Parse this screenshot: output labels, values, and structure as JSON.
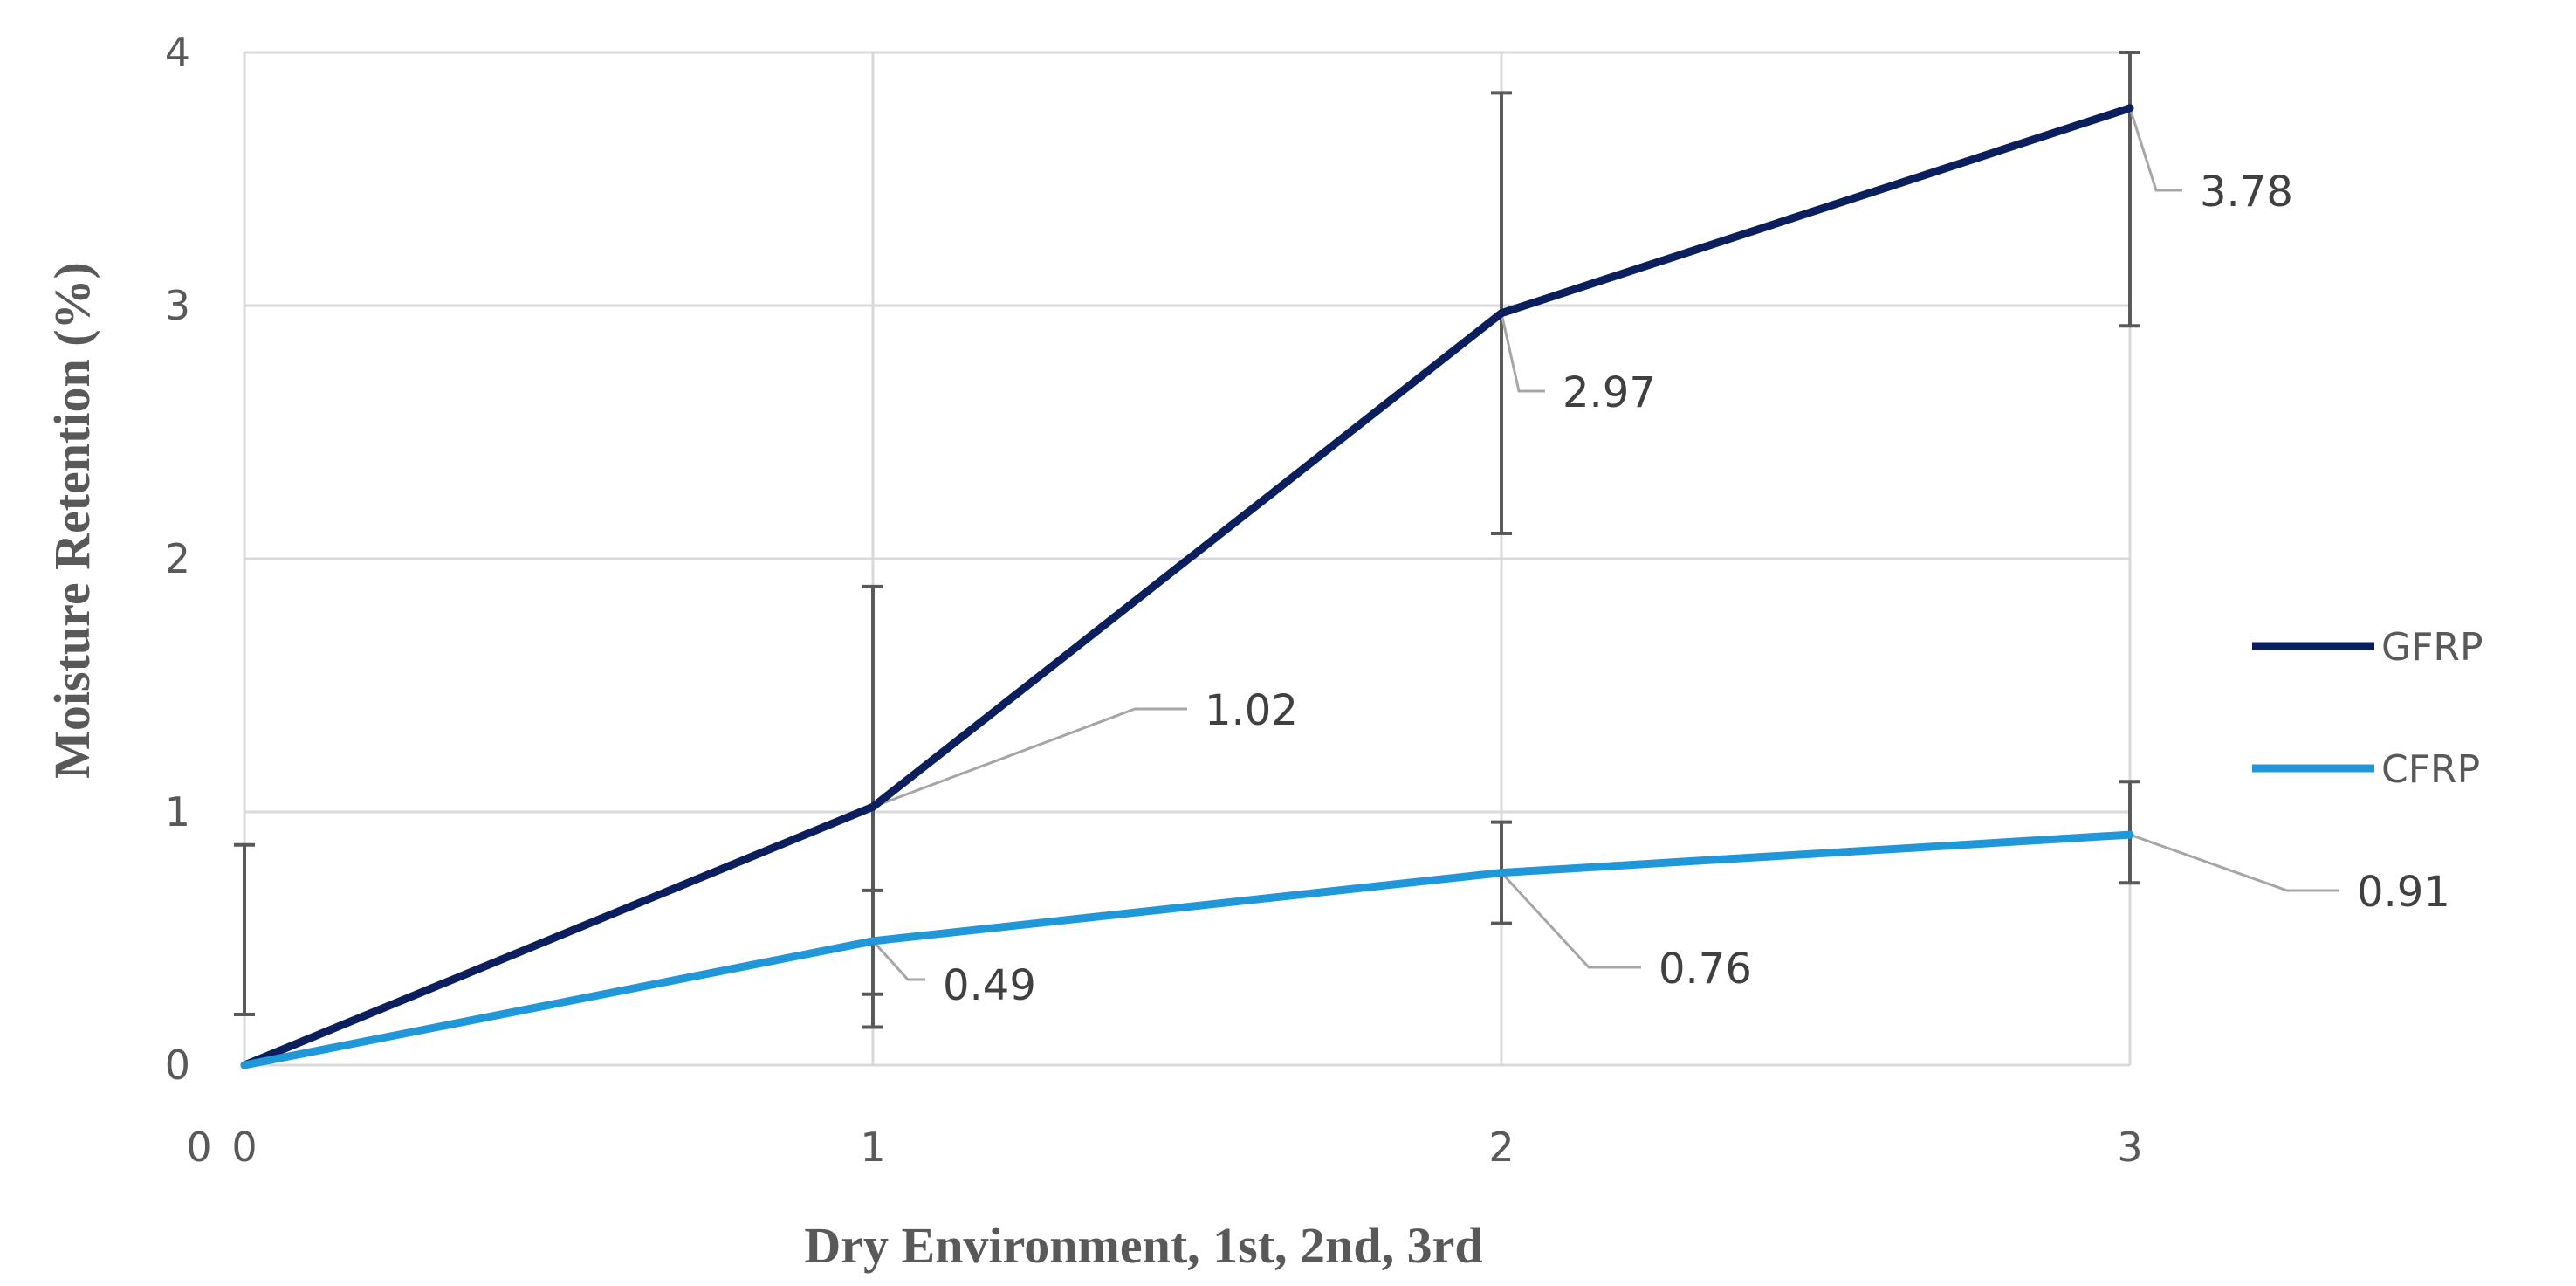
{
  "chart_data": {
    "type": "line",
    "xlabel": "Dry Environment, 1st, 2nd, 3rd",
    "ylabel": "Moisture Retention (%)",
    "x": [
      0,
      1,
      2,
      3
    ],
    "xlim": [
      0,
      3
    ],
    "ylim": [
      0,
      4
    ],
    "x_ticks": [
      "0",
      "1",
      "2",
      "3"
    ],
    "y_ticks": [
      "0",
      "1",
      "2",
      "3",
      "4"
    ],
    "x_origin_overlap_label": "0",
    "grid": true,
    "legend_position": "right",
    "series": [
      {
        "name": "GFRP",
        "color": "#0b1f5e",
        "values": [
          0,
          1.02,
          2.97,
          3.78
        ],
        "error_low": [
          null,
          0.28,
          2.1,
          2.92
        ],
        "error_high": [
          null,
          1.89,
          3.84,
          4.0
        ],
        "data_labels": [
          "",
          "1.02",
          "2.97",
          "3.78"
        ]
      },
      {
        "name": "CFRP",
        "color": "#1f97d9",
        "values": [
          0,
          0.49,
          0.76,
          0.91
        ],
        "error_low": [
          0.2,
          0.15,
          0.56,
          0.72
        ],
        "error_high": [
          0.87,
          0.69,
          0.96,
          1.12
        ],
        "data_labels": [
          "",
          "0.49",
          "0.76",
          "0.91"
        ]
      }
    ]
  }
}
